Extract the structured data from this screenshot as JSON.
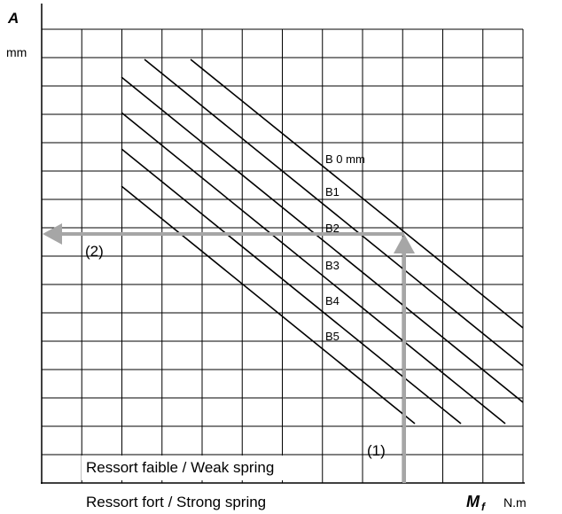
{
  "axes": {
    "y_symbol": "A",
    "y_unit": "mm",
    "x_symbol": "M",
    "x_subscript": "f",
    "x_unit": "N.m"
  },
  "lines": [
    {
      "label": "B 0 mm"
    },
    {
      "label": "B1"
    },
    {
      "label": "B2"
    },
    {
      "label": "B3"
    },
    {
      "label": "B4"
    },
    {
      "label": "B5"
    }
  ],
  "arrows": [
    {
      "label": "(1)"
    },
    {
      "label": "(2)"
    }
  ],
  "legend": {
    "weak": "Ressort faible / Weak spring",
    "strong": "Ressort fort / Strong spring"
  }
}
